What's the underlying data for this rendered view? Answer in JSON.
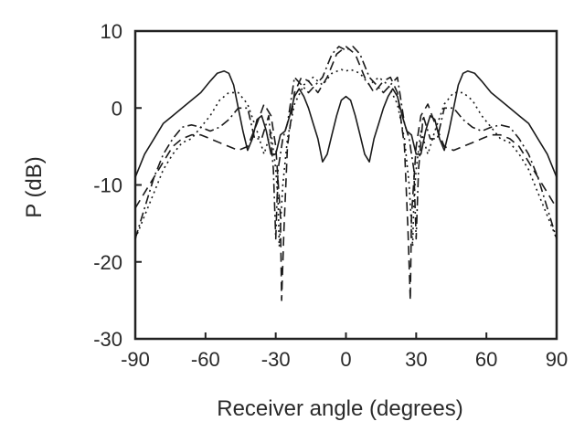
{
  "chart_data": {
    "type": "line",
    "title": "",
    "xlabel": "Receiver angle (degrees)",
    "ylabel": "P (dB)",
    "xlim": [
      -90,
      90
    ],
    "ylim": [
      -30,
      10
    ],
    "xticks": [
      -90,
      -60,
      -30,
      0,
      30,
      60,
      90
    ],
    "yticks": [
      10,
      0,
      -10,
      -20,
      -30
    ],
    "xtick_labels": [
      "-90",
      "-60",
      "-30",
      "0",
      "30",
      "60",
      "90"
    ],
    "ytick_labels": [
      "10",
      "0",
      "-10",
      "-20",
      "-30"
    ],
    "grid": false,
    "legend": "none",
    "series": [
      {
        "style": "solid",
        "x": [
          -90,
          -86,
          -82,
          -78,
          -74,
          -70,
          -66,
          -62,
          -58,
          -55,
          -52,
          -50,
          -48,
          -46,
          -44,
          -42,
          -40,
          -38,
          -36,
          -34,
          -32,
          -30,
          -28,
          -26,
          -24,
          -22,
          -20,
          -18,
          -16,
          -14,
          -12,
          -10,
          -8,
          -6,
          -4,
          -2,
          0,
          2,
          4,
          6,
          8,
          10,
          12,
          14,
          16,
          18,
          20,
          22,
          24,
          26,
          28,
          30,
          32,
          34,
          36,
          38,
          40,
          42,
          44,
          46,
          48,
          50,
          52,
          55,
          58,
          62,
          66,
          70,
          74,
          78,
          82,
          86,
          90
        ],
        "y": [
          -9,
          -6,
          -4,
          -2,
          -1,
          0,
          1,
          2,
          3.5,
          4.5,
          4.8,
          4.5,
          3,
          0,
          -3,
          -5.5,
          -4,
          -1.5,
          -1,
          -3,
          -6,
          -6,
          -3.5,
          -3,
          -1,
          1.5,
          2.5,
          1.5,
          0,
          -2,
          -4,
          -7,
          -6,
          -3.5,
          -1,
          1,
          1.5,
          1,
          -1,
          -3.5,
          -6,
          -7,
          -4,
          -2,
          0,
          1.5,
          2.5,
          1.5,
          -1,
          -3,
          -3.5,
          -6,
          -6,
          -3,
          -1,
          -1.5,
          -4,
          -5.5,
          -3,
          0,
          3,
          4.5,
          4.8,
          4.5,
          3.5,
          2,
          1,
          0,
          -1,
          -2,
          -4,
          -6,
          -9
        ]
      },
      {
        "style": "dashed",
        "x": [
          -90,
          -86,
          -82,
          -78,
          -74,
          -70,
          -66,
          -62,
          -58,
          -54,
          -50,
          -46,
          -42,
          -38,
          -35,
          -32,
          -30,
          -28,
          -27.5,
          -26.5,
          -25,
          -22,
          -19,
          -16,
          -12,
          -8,
          -4,
          0,
          4,
          8,
          12,
          16,
          19,
          22,
          25,
          26.5,
          27.5,
          28,
          30,
          32,
          35,
          38,
          42,
          46,
          50,
          54,
          58,
          62,
          66,
          70,
          74,
          78,
          82,
          86,
          90
        ],
        "y": [
          -13,
          -11,
          -9,
          -7,
          -5,
          -4,
          -3.5,
          -3.5,
          -4,
          -4.5,
          -5,
          -5.5,
          -5,
          -2,
          0.5,
          -1,
          -5,
          -14,
          -25,
          -16,
          -5,
          2,
          4,
          3.5,
          2,
          4,
          7,
          8,
          7,
          4,
          2,
          3.5,
          4,
          2,
          -5,
          -16,
          -25,
          -14,
          -5,
          -1,
          0.5,
          -2,
          -5,
          -5.5,
          -5,
          -4.5,
          -4,
          -3.5,
          -3.5,
          -4,
          -5,
          -7,
          -9,
          -11,
          -13
        ]
      },
      {
        "style": "dash-dot",
        "x": [
          -90,
          -86,
          -82,
          -78,
          -74,
          -70,
          -66,
          -62,
          -58,
          -54,
          -50,
          -46,
          -42,
          -39,
          -36,
          -33,
          -31,
          -30,
          -29,
          -28,
          -27,
          -25,
          -22,
          -19,
          -16,
          -13,
          -10,
          -6,
          -3,
          0,
          3,
          6,
          10,
          13,
          16,
          19,
          22,
          25,
          27,
          28,
          29,
          30,
          31,
          33,
          36,
          39,
          42,
          46,
          50,
          54,
          58,
          62,
          66,
          70,
          74,
          78,
          82,
          86,
          90
        ],
        "y": [
          -17,
          -13,
          -9,
          -6,
          -4,
          -2.5,
          -2.2,
          -2.5,
          -3,
          -2.5,
          -1.5,
          0,
          0,
          -4,
          -4,
          -1,
          -8,
          -17,
          -8,
          -6,
          -4,
          -2,
          4,
          3,
          2,
          3,
          4,
          7,
          8,
          7.5,
          8,
          7,
          4,
          3,
          2,
          3,
          4,
          -2,
          -4,
          -6,
          -8,
          -17,
          -8,
          -1,
          -4,
          -4,
          0,
          0,
          -1.5,
          -2.5,
          -3,
          -2.5,
          -2.2,
          -2.5,
          -4,
          -6,
          -9,
          -13,
          -17
        ]
      },
      {
        "style": "dotted",
        "x": [
          -90,
          -86,
          -82,
          -78,
          -74,
          -70,
          -66,
          -62,
          -58,
          -54,
          -50,
          -46,
          -42,
          -38,
          -35,
          -32,
          -30,
          -29,
          -28.5,
          -27,
          -25,
          -22,
          -18,
          -14,
          -10,
          -6,
          -2,
          0,
          2,
          6,
          10,
          14,
          18,
          22,
          25,
          27,
          28.5,
          29,
          30,
          32,
          35,
          38,
          42,
          46,
          50,
          54,
          58,
          62,
          66,
          70,
          74,
          78,
          82,
          86,
          90
        ],
        "y": [
          -17,
          -14,
          -11,
          -8,
          -6,
          -4.5,
          -4,
          -2.5,
          -1,
          1,
          2,
          2,
          0.5,
          -3,
          -6,
          -3,
          -8,
          -12,
          -18,
          -10,
          -4,
          0.5,
          3,
          4,
          3,
          4.5,
          5,
          4.8,
          5,
          4.5,
          3,
          4,
          3,
          0.5,
          -4,
          -10,
          -18,
          -12,
          -8,
          -3,
          -6,
          -3,
          0.5,
          2,
          2,
          1,
          -1,
          -2.5,
          -4,
          -4.5,
          -6,
          -8,
          -11,
          -14,
          -17
        ]
      }
    ]
  }
}
